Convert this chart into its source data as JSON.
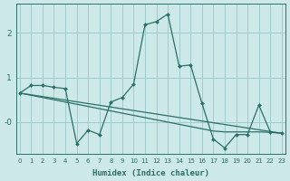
{
  "xlabel": "Humidex (Indice chaleur)",
  "background_color": "#cde8e8",
  "grid_color": "#a0cccc",
  "line_color": "#2a7068",
  "xlim": [
    -0.3,
    23.3
  ],
  "ylim": [
    -0.72,
    2.65
  ],
  "yticks": [
    0,
    1,
    2
  ],
  "ytick_labels": [
    "-0",
    "1",
    "2"
  ],
  "xticks": [
    0,
    1,
    2,
    3,
    4,
    5,
    6,
    7,
    8,
    9,
    10,
    11,
    12,
    13,
    14,
    15,
    16,
    17,
    18,
    19,
    20,
    21,
    22,
    23
  ],
  "line1_x": [
    0,
    1,
    2,
    3,
    4,
    5,
    6,
    7,
    8,
    9,
    10,
    11,
    12,
    13,
    14,
    15,
    16,
    17,
    18,
    19,
    20,
    21,
    22,
    23
  ],
  "line1_y": [
    0.65,
    0.82,
    0.82,
    0.78,
    0.75,
    -0.48,
    -0.18,
    -0.28,
    0.45,
    0.55,
    0.85,
    2.18,
    2.25,
    2.42,
    1.25,
    1.28,
    0.42,
    -0.38,
    -0.58,
    -0.28,
    -0.28,
    0.38,
    -0.22,
    -0.25
  ],
  "line2_x": [
    0,
    23
  ],
  "line2_y": [
    0.65,
    -0.25
  ],
  "line3_x": [
    0,
    1,
    2,
    3,
    4,
    5,
    6,
    7,
    8,
    9,
    10,
    11,
    12,
    13,
    14,
    15,
    16,
    17,
    18,
    19,
    20,
    21,
    22,
    23
  ],
  "line3_y": [
    0.65,
    0.6,
    0.55,
    0.5,
    0.45,
    0.4,
    0.35,
    0.3,
    0.25,
    0.2,
    0.15,
    0.1,
    0.05,
    0.0,
    -0.05,
    -0.1,
    -0.15,
    -0.2,
    -0.22,
    -0.22,
    -0.22,
    -0.22,
    -0.23,
    -0.25
  ]
}
